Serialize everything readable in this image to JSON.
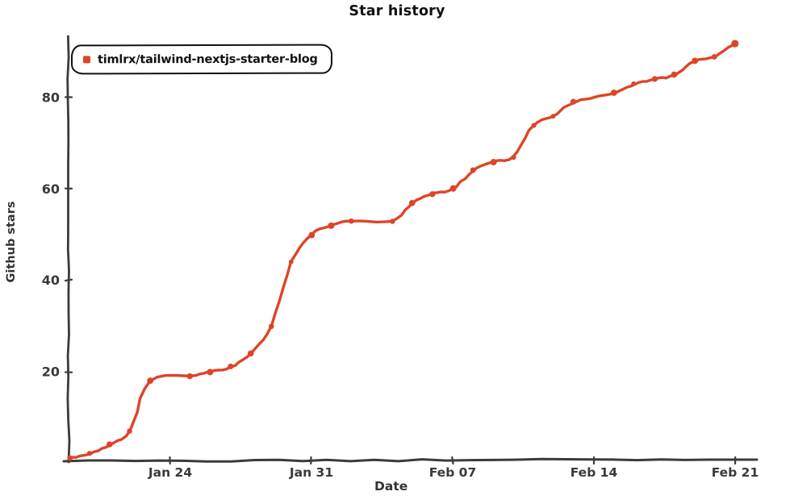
{
  "chart_data": {
    "type": "line",
    "style": "xkcd-hand-drawn",
    "title": "Star history",
    "xlabel": "Date",
    "ylabel": "Github stars",
    "grid": false,
    "legend_position": "top-left",
    "x_ticks": [
      "Jan 24",
      "Jan 31",
      "Feb 07",
      "Feb 14",
      "Feb 21"
    ],
    "y_ticks": [
      20,
      40,
      60,
      80
    ],
    "ylim": [
      0,
      93
    ],
    "series": [
      {
        "name": "timlrx/tailwind-nextjs-starter-blog",
        "color": "#dd4528",
        "points": [
          {
            "date": "Jan 19",
            "stars": 1
          },
          {
            "date": "Jan 20",
            "stars": 2
          },
          {
            "date": "Jan 21",
            "stars": 4
          },
          {
            "date": "Jan 22",
            "stars": 7
          },
          {
            "date": "Jan 23",
            "stars": 18
          },
          {
            "date": "Jan 25",
            "stars": 19
          },
          {
            "date": "Jan 26",
            "stars": 20
          },
          {
            "date": "Jan 27",
            "stars": 21
          },
          {
            "date": "Jan 28",
            "stars": 24
          },
          {
            "date": "Jan 29",
            "stars": 30
          },
          {
            "date": "Jan 30",
            "stars": 44
          },
          {
            "date": "Jan 31",
            "stars": 50
          },
          {
            "date": "Feb 01",
            "stars": 52
          },
          {
            "date": "Feb 02",
            "stars": 53
          },
          {
            "date": "Feb 04",
            "stars": 53
          },
          {
            "date": "Feb 05",
            "stars": 57
          },
          {
            "date": "Feb 06",
            "stars": 59
          },
          {
            "date": "Feb 07",
            "stars": 60
          },
          {
            "date": "Feb 08",
            "stars": 64
          },
          {
            "date": "Feb 09",
            "stars": 66
          },
          {
            "date": "Feb 10",
            "stars": 67
          },
          {
            "date": "Feb 11",
            "stars": 74
          },
          {
            "date": "Feb 12",
            "stars": 76
          },
          {
            "date": "Feb 13",
            "stars": 79
          },
          {
            "date": "Feb 15",
            "stars": 81
          },
          {
            "date": "Feb 16",
            "stars": 83
          },
          {
            "date": "Feb 17",
            "stars": 84
          },
          {
            "date": "Feb 18",
            "stars": 85
          },
          {
            "date": "Feb 19",
            "stars": 88
          },
          {
            "date": "Feb 20",
            "stars": 89
          },
          {
            "date": "Feb 21",
            "stars": 92
          }
        ]
      }
    ],
    "colors": {
      "line": "#dd4528",
      "axis": "#3b3b3b",
      "tick_text": "#3a3a3a",
      "title_text": "#111111",
      "background": "#ffffff"
    }
  }
}
